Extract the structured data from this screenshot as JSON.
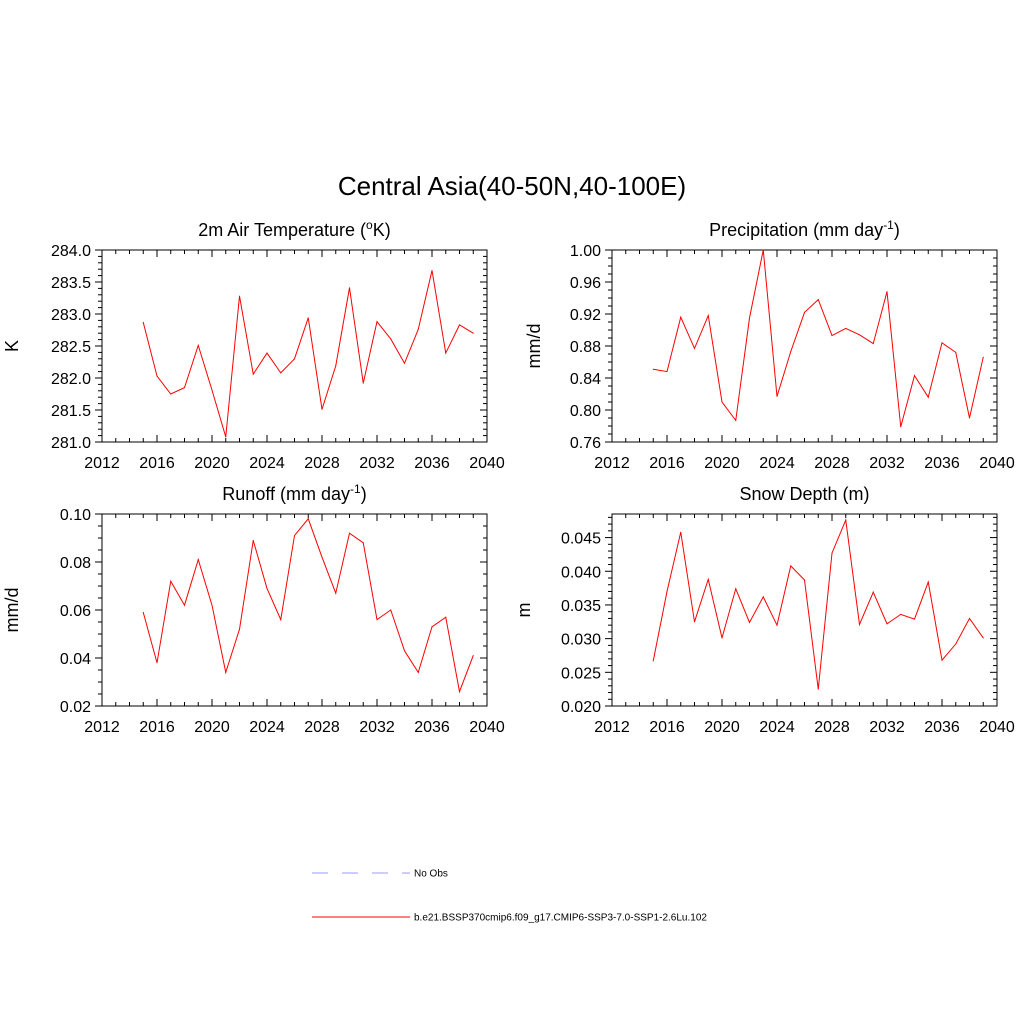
{
  "title": "Central Asia(40-50N,40-100E)",
  "colors": {
    "model_line": "#ff0000",
    "obs_line": "#9999ff",
    "axis": "#000000"
  },
  "legend": {
    "entries": [
      {
        "label": "No Obs",
        "style": "dashed",
        "color": "#9999ff"
      },
      {
        "label": "b.e21.BSSP370cmip6.f09_g17.CMIP6-SSP3-7.0-SSP1-2.6Lu.102",
        "style": "solid",
        "color": "#ff0000"
      }
    ]
  },
  "chart_data": [
    {
      "type": "line",
      "title": "2m Air Temperature (oK)",
      "title_parts": {
        "pre": "2m Air Temperature (",
        "sup": "o",
        "post": "K)"
      },
      "ylabel": "K",
      "xlim": [
        2012,
        2040
      ],
      "ylim": [
        281.0,
        284.0
      ],
      "xticks": [
        2012,
        2016,
        2020,
        2024,
        2028,
        2032,
        2036,
        2040
      ],
      "yticks": [
        281.0,
        281.5,
        282.0,
        282.5,
        283.0,
        283.5,
        284.0
      ],
      "ytick_labels": [
        "281.0",
        "281.5",
        "282.0",
        "282.5",
        "283.0",
        "283.5",
        "284.0"
      ],
      "x_minor": 1,
      "y_minor": 0.1,
      "x": [
        2015,
        2016,
        2017,
        2018,
        2019,
        2020,
        2021,
        2022,
        2023,
        2024,
        2025,
        2026,
        2027,
        2028,
        2029,
        2030,
        2031,
        2032,
        2033,
        2034,
        2035,
        2036,
        2037,
        2038,
        2039
      ],
      "series": [
        {
          "values": [
            282.87,
            282.03,
            281.75,
            281.85,
            282.51,
            281.81,
            281.08,
            283.28,
            282.06,
            282.39,
            282.08,
            282.3,
            282.94,
            281.51,
            282.19,
            283.41,
            281.92,
            282.88,
            282.61,
            282.23,
            282.76,
            283.68,
            282.39,
            282.83,
            282.7
          ]
        }
      ]
    },
    {
      "type": "line",
      "title": "Precipitation (mm day-1)",
      "title_parts": {
        "pre": "Precipitation (mm day",
        "sup": "-1",
        "post": ")"
      },
      "ylabel": "mm/d",
      "xlim": [
        2012,
        2040
      ],
      "ylim": [
        0.76,
        1.0
      ],
      "xticks": [
        2012,
        2016,
        2020,
        2024,
        2028,
        2032,
        2036,
        2040
      ],
      "yticks": [
        0.76,
        0.8,
        0.84,
        0.88,
        0.92,
        0.96,
        1.0
      ],
      "ytick_labels": [
        "0.76",
        "0.80",
        "0.84",
        "0.88",
        "0.92",
        "0.96",
        "1.00"
      ],
      "x_minor": 1,
      "y_minor": 0.01,
      "x": [
        2015,
        2016,
        2017,
        2018,
        2019,
        2020,
        2021,
        2022,
        2023,
        2024,
        2025,
        2026,
        2027,
        2028,
        2029,
        2030,
        2031,
        2032,
        2033,
        2034,
        2035,
        2036,
        2037,
        2038,
        2039
      ],
      "series": [
        {
          "values": [
            0.851,
            0.848,
            0.916,
            0.877,
            0.918,
            0.81,
            0.787,
            0.915,
            1.0,
            0.817,
            0.873,
            0.922,
            0.938,
            0.893,
            0.902,
            0.894,
            0.883,
            0.948,
            0.779,
            0.843,
            0.816,
            0.884,
            0.872,
            0.79,
            0.866
          ]
        }
      ]
    },
    {
      "type": "line",
      "title": "Runoff (mm day-1)",
      "title_parts": {
        "pre": "Runoff (mm day",
        "sup": "-1",
        "post": ")"
      },
      "ylabel": "mm/d",
      "xlim": [
        2012,
        2040
      ],
      "ylim": [
        0.02,
        0.1
      ],
      "xticks": [
        2012,
        2016,
        2020,
        2024,
        2028,
        2032,
        2036,
        2040
      ],
      "yticks": [
        0.02,
        0.04,
        0.06,
        0.08,
        0.1
      ],
      "ytick_labels": [
        "0.02",
        "0.04",
        "0.06",
        "0.08",
        "0.10"
      ],
      "x_minor": 1,
      "y_minor": 0.005,
      "x": [
        2015,
        2016,
        2017,
        2018,
        2019,
        2020,
        2021,
        2022,
        2023,
        2024,
        2025,
        2026,
        2027,
        2028,
        2029,
        2030,
        2031,
        2032,
        2033,
        2034,
        2035,
        2036,
        2037,
        2038,
        2039
      ],
      "series": [
        {
          "values": [
            0.059,
            0.038,
            0.072,
            0.062,
            0.081,
            0.062,
            0.034,
            0.052,
            0.089,
            0.069,
            0.056,
            0.091,
            0.098,
            0.082,
            0.067,
            0.092,
            0.088,
            0.056,
            0.06,
            0.043,
            0.034,
            0.053,
            0.057,
            0.026,
            0.041
          ]
        }
      ]
    },
    {
      "type": "line",
      "title": "Snow Depth (m)",
      "title_parts": {
        "pre": "Snow Depth (m)",
        "sup": "",
        "post": ""
      },
      "ylabel": "m",
      "xlim": [
        2012,
        2040
      ],
      "ylim": [
        0.02,
        0.0485
      ],
      "xticks": [
        2012,
        2016,
        2020,
        2024,
        2028,
        2032,
        2036,
        2040
      ],
      "yticks": [
        0.02,
        0.025,
        0.03,
        0.035,
        0.04,
        0.045
      ],
      "ytick_labels": [
        "0.020",
        "0.025",
        "0.030",
        "0.035",
        "0.040",
        "0.045"
      ],
      "x_minor": 1,
      "y_minor": 0.001,
      "x": [
        2015,
        2016,
        2017,
        2018,
        2019,
        2020,
        2021,
        2022,
        2023,
        2024,
        2025,
        2026,
        2027,
        2028,
        2029,
        2030,
        2031,
        2032,
        2033,
        2034,
        2035,
        2036,
        2037,
        2038,
        2039
      ],
      "series": [
        {
          "values": [
            0.0267,
            0.037,
            0.0458,
            0.0325,
            0.0388,
            0.0301,
            0.0374,
            0.0324,
            0.0362,
            0.032,
            0.0408,
            0.0387,
            0.0225,
            0.0427,
            0.0476,
            0.0321,
            0.0369,
            0.0322,
            0.0336,
            0.0329,
            0.0384,
            0.0268,
            0.0292,
            0.033,
            0.0301
          ]
        }
      ]
    }
  ]
}
